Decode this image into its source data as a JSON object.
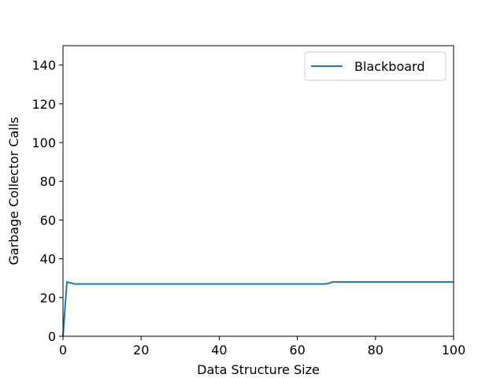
{
  "chart_data": {
    "type": "line",
    "title": "",
    "xlabel": "Data Structure Size",
    "ylabel": "Garbage Collector Calls",
    "xlim": [
      0,
      100
    ],
    "ylim": [
      0,
      150
    ],
    "xticks": [
      0,
      20,
      40,
      60,
      80,
      100
    ],
    "yticks": [
      0,
      20,
      40,
      60,
      80,
      100,
      120,
      140
    ],
    "grid": false,
    "legend_position": "top-right",
    "series": [
      {
        "name": "Blackboard",
        "color": "#1f77b4",
        "x": [
          0,
          1,
          2,
          3,
          10,
          20,
          30,
          40,
          50,
          60,
          66,
          67,
          68,
          69,
          70,
          80,
          90,
          100
        ],
        "y": [
          0,
          28,
          27.5,
          27,
          27,
          27,
          27,
          27,
          27,
          27,
          27,
          27,
          27.3,
          28,
          28,
          28,
          28,
          28
        ]
      }
    ]
  }
}
